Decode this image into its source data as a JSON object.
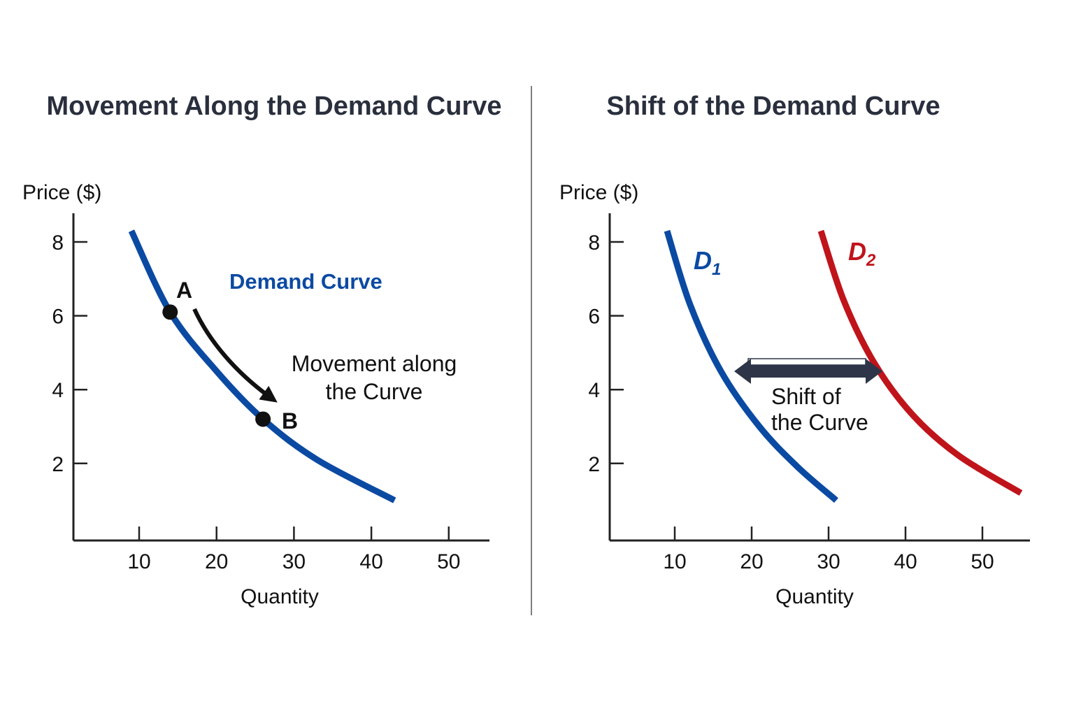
{
  "colors": {
    "demand": "#0b4aa2",
    "demand_light": "#1a74d8",
    "d1": "#0b4aa2",
    "d2": "#c0141b",
    "axis": "#222222",
    "arrow": "#111111",
    "shift_arrow": "#2e3548",
    "divider": "#555555"
  },
  "chart_data": [
    {
      "type": "line",
      "title": "Movement Along the Demand Curve",
      "ylabel": "Price ($)",
      "xlabel": "Quantity",
      "x_ticks": [
        "10",
        "20",
        "30",
        "40",
        "50"
      ],
      "y_ticks": [
        "8",
        "6",
        "4",
        "2"
      ],
      "series": [
        {
          "name": "Demand Curve",
          "x": [
            9,
            14,
            20,
            26,
            33,
            43
          ],
          "y": [
            8.3,
            6.1,
            4.5,
            3.2,
            2.1,
            1.0
          ]
        }
      ],
      "points": [
        {
          "label": "A",
          "x": 14,
          "y": 6.1
        },
        {
          "label": "B",
          "x": 26,
          "y": 3.2
        }
      ],
      "annotation": {
        "line1": "Movement along",
        "line2": "the Curve"
      }
    },
    {
      "type": "line",
      "title": "Shift of the Demand Curve",
      "ylabel": "Price ($)",
      "xlabel": "Quantity",
      "x_ticks": [
        "10",
        "20",
        "30",
        "40",
        "50"
      ],
      "y_ticks": [
        "8",
        "6",
        "4",
        "2"
      ],
      "series": [
        {
          "name": "D",
          "subscript": "1",
          "x": [
            9,
            12,
            16,
            21,
            26,
            31
          ],
          "y": [
            8.3,
            6.3,
            4.5,
            3.0,
            1.9,
            1.0
          ]
        },
        {
          "name": "D",
          "subscript": "2",
          "x": [
            29,
            32,
            36,
            41,
            47,
            55
          ],
          "y": [
            8.3,
            6.4,
            4.7,
            3.3,
            2.2,
            1.2
          ]
        }
      ],
      "annotation": {
        "line1": "Shift of",
        "line2": "the Curve"
      }
    }
  ]
}
